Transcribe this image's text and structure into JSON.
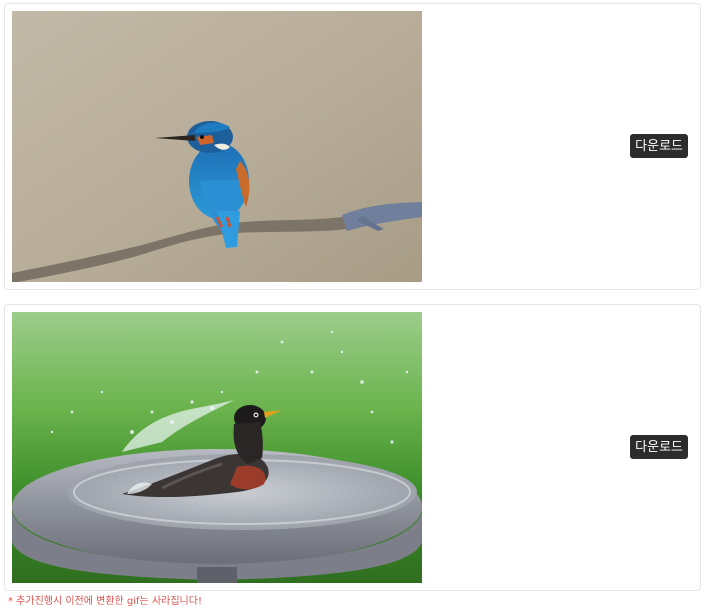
{
  "items": [
    {
      "image_subject": "kingfisher",
      "download_label": "다운로드"
    },
    {
      "image_subject": "robin",
      "download_label": "다운로드"
    }
  ],
  "notice": "* 추가진행시 이전에 변환한 gif는 사라집니다!",
  "colors": {
    "button_bg": "#2c2c2c",
    "button_text": "#ffffff",
    "notice_text": "#d9534f",
    "card_border": "#e6e6e6"
  }
}
